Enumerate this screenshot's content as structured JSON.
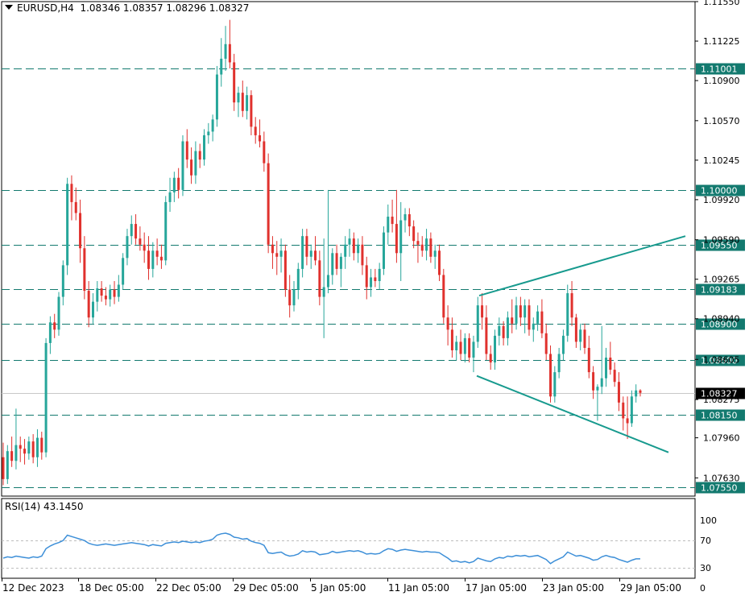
{
  "header": {
    "symbol": "EURUSD,H4",
    "ohlc": "1.08346 1.08357 1.08296 1.08327"
  },
  "rsi_panel": {
    "label": "RSI(14) 43.1450",
    "period": 14,
    "value": 43.145,
    "ticks": [
      100,
      70,
      30,
      0
    ],
    "levels": [
      70,
      30
    ]
  },
  "colors": {
    "bull": "#26a69a",
    "bear": "#e0312d",
    "level": "#137a6f",
    "channel": "#179a8e",
    "rsi": "#3d8fd8",
    "grid_dash": "#bdbdbd"
  },
  "chart_data": {
    "type": "candlestick",
    "symbol": "EURUSD",
    "timeframe": "H4",
    "ylim": [
      1.0748,
      1.1155
    ],
    "y_ticks": [
      "1.11550",
      "1.11225",
      "1.10900",
      "1.10570",
      "1.10245",
      "1.09920",
      "1.09590",
      "1.09265",
      "1.08940",
      "1.08605",
      "1.08275",
      "1.07960",
      "1.07630"
    ],
    "x_ticks": [
      "12 Dec 2023",
      "18 Dec 05:00",
      "22 Dec 05:00",
      "29 Dec 05:00",
      "5 Jan 05:00",
      "11 Jan 05:00",
      "17 Jan 05:00",
      "23 Jan 05:00",
      "29 Jan 05:00"
    ],
    "horizontal_levels": [
      "1.11001",
      "1.10000",
      "1.09550",
      "1.09183",
      "1.08900",
      "1.08600",
      "1.08150",
      "1.07550"
    ],
    "current_price": "1.08327",
    "channel": {
      "upper": [
        [
          1.0913,
          1.0962
        ]
      ],
      "lower": [
        [
          1.0847,
          1.0784
        ]
      ]
    },
    "candles": [
      {
        "o": 1.078,
        "h": 1.0792,
        "l": 1.0757,
        "c": 1.0762
      },
      {
        "o": 1.0762,
        "h": 1.079,
        "l": 1.0758,
        "c": 1.0785
      },
      {
        "o": 1.0785,
        "h": 1.0797,
        "l": 1.0772,
        "c": 1.0777
      },
      {
        "o": 1.0777,
        "h": 1.082,
        "l": 1.077,
        "c": 1.079
      },
      {
        "o": 1.079,
        "h": 1.0797,
        "l": 1.0776,
        "c": 1.0787
      },
      {
        "o": 1.0787,
        "h": 1.0795,
        "l": 1.0774,
        "c": 1.0783
      },
      {
        "o": 1.0783,
        "h": 1.0797,
        "l": 1.0778,
        "c": 1.0793
      },
      {
        "o": 1.0793,
        "h": 1.0799,
        "l": 1.0775,
        "c": 1.078
      },
      {
        "o": 1.078,
        "h": 1.0803,
        "l": 1.0772,
        "c": 1.0796
      },
      {
        "o": 1.0796,
        "h": 1.0801,
        "l": 1.0778,
        "c": 1.0784
      },
      {
        "o": 1.0784,
        "h": 1.0878,
        "l": 1.078,
        "c": 1.0874
      },
      {
        "o": 1.0874,
        "h": 1.0896,
        "l": 1.0865,
        "c": 1.0891
      },
      {
        "o": 1.0891,
        "h": 1.0898,
        "l": 1.0878,
        "c": 1.0885
      },
      {
        "o": 1.0885,
        "h": 1.0916,
        "l": 1.088,
        "c": 1.0912
      },
      {
        "o": 1.0912,
        "h": 1.0942,
        "l": 1.0905,
        "c": 1.0938
      },
      {
        "o": 1.0938,
        "h": 1.101,
        "l": 1.093,
        "c": 1.1005
      },
      {
        "o": 1.1005,
        "h": 1.1012,
        "l": 1.0975,
        "c": 1.099
      },
      {
        "o": 1.099,
        "h": 1.1002,
        "l": 1.0975,
        "c": 1.0981
      },
      {
        "o": 1.0981,
        "h": 1.0992,
        "l": 1.094,
        "c": 1.0952
      },
      {
        "o": 1.0952,
        "h": 1.0962,
        "l": 1.091,
        "c": 1.0917
      },
      {
        "o": 1.0917,
        "h": 1.0925,
        "l": 1.0887,
        "c": 1.0895
      },
      {
        "o": 1.0895,
        "h": 1.0915,
        "l": 1.089,
        "c": 1.0908
      },
      {
        "o": 1.0908,
        "h": 1.0925,
        "l": 1.09,
        "c": 1.0919
      },
      {
        "o": 1.0919,
        "h": 1.0925,
        "l": 1.0908,
        "c": 1.0913
      },
      {
        "o": 1.0913,
        "h": 1.092,
        "l": 1.0905,
        "c": 1.091
      },
      {
        "o": 1.091,
        "h": 1.0922,
        "l": 1.0904,
        "c": 1.0918
      },
      {
        "o": 1.0918,
        "h": 1.0925,
        "l": 1.0906,
        "c": 1.0912
      },
      {
        "o": 1.0912,
        "h": 1.093,
        "l": 1.0908,
        "c": 1.0922
      },
      {
        "o": 1.0922,
        "h": 1.0948,
        "l": 1.0918,
        "c": 1.0944
      },
      {
        "o": 1.0944,
        "h": 1.0968,
        "l": 1.0938,
        "c": 1.0962
      },
      {
        "o": 1.0962,
        "h": 1.0979,
        "l": 1.0955,
        "c": 1.0972
      },
      {
        "o": 1.0972,
        "h": 1.098,
        "l": 1.0955,
        "c": 1.096
      },
      {
        "o": 1.096,
        "h": 1.097,
        "l": 1.095,
        "c": 1.0955
      },
      {
        "o": 1.0955,
        "h": 1.0965,
        "l": 1.094,
        "c": 1.095
      },
      {
        "o": 1.095,
        "h": 1.0962,
        "l": 1.0926,
        "c": 1.0935
      },
      {
        "o": 1.0935,
        "h": 1.0957,
        "l": 1.0928,
        "c": 1.095
      },
      {
        "o": 1.095,
        "h": 1.096,
        "l": 1.0938,
        "c": 1.0945
      },
      {
        "o": 1.0945,
        "h": 1.0955,
        "l": 1.0935,
        "c": 1.0942
      },
      {
        "o": 1.0942,
        "h": 1.0995,
        "l": 1.0938,
        "c": 1.099
      },
      {
        "o": 1.099,
        "h": 1.101,
        "l": 1.0982,
        "c": 1.0998
      },
      {
        "o": 1.0998,
        "h": 1.1015,
        "l": 1.099,
        "c": 1.101
      },
      {
        "o": 1.101,
        "h": 1.1018,
        "l": 1.0993,
        "c": 1.1
      },
      {
        "o": 1.1,
        "h": 1.1045,
        "l": 1.0995,
        "c": 1.104
      },
      {
        "o": 1.104,
        "h": 1.105,
        "l": 1.1018,
        "c": 1.1025
      },
      {
        "o": 1.1025,
        "h": 1.1035,
        "l": 1.1005,
        "c": 1.1012
      },
      {
        "o": 1.1012,
        "h": 1.104,
        "l": 1.1005,
        "c": 1.1032
      },
      {
        "o": 1.1032,
        "h": 1.1038,
        "l": 1.1018,
        "c": 1.1025
      },
      {
        "o": 1.1025,
        "h": 1.105,
        "l": 1.102,
        "c": 1.1045
      },
      {
        "o": 1.1045,
        "h": 1.1055,
        "l": 1.1038,
        "c": 1.1048
      },
      {
        "o": 1.1048,
        "h": 1.1062,
        "l": 1.104,
        "c": 1.1058
      },
      {
        "o": 1.1058,
        "h": 1.1102,
        "l": 1.1052,
        "c": 1.1095
      },
      {
        "o": 1.1095,
        "h": 1.1125,
        "l": 1.1085,
        "c": 1.1108
      },
      {
        "o": 1.1108,
        "h": 1.1135,
        "l": 1.1098,
        "c": 1.112
      },
      {
        "o": 1.112,
        "h": 1.114,
        "l": 1.11,
        "c": 1.1105
      },
      {
        "o": 1.1105,
        "h": 1.1112,
        "l": 1.1065,
        "c": 1.1072
      },
      {
        "o": 1.1072,
        "h": 1.1085,
        "l": 1.106,
        "c": 1.108
      },
      {
        "o": 1.108,
        "h": 1.109,
        "l": 1.106,
        "c": 1.1065
      },
      {
        "o": 1.1065,
        "h": 1.1085,
        "l": 1.1058,
        "c": 1.1078
      },
      {
        "o": 1.1078,
        "h": 1.1082,
        "l": 1.1045,
        "c": 1.1052
      },
      {
        "o": 1.1052,
        "h": 1.106,
        "l": 1.1038,
        "c": 1.1045
      },
      {
        "o": 1.1045,
        "h": 1.1058,
        "l": 1.1035,
        "c": 1.104
      },
      {
        "o": 1.104,
        "h": 1.1048,
        "l": 1.1015,
        "c": 1.1022
      },
      {
        "o": 1.1022,
        "h": 1.103,
        "l": 1.0948,
        "c": 1.0955
      },
      {
        "o": 1.0955,
        "h": 1.0962,
        "l": 1.0935,
        "c": 1.0948
      },
      {
        "o": 1.0948,
        "h": 1.0958,
        "l": 1.093,
        "c": 1.0945
      },
      {
        "o": 1.0945,
        "h": 1.096,
        "l": 1.0932,
        "c": 1.095
      },
      {
        "o": 1.095,
        "h": 1.0955,
        "l": 1.0912,
        "c": 1.0918
      },
      {
        "o": 1.0918,
        "h": 1.093,
        "l": 1.0895,
        "c": 1.0905
      },
      {
        "o": 1.0905,
        "h": 1.0925,
        "l": 1.09,
        "c": 1.0918
      },
      {
        "o": 1.0918,
        "h": 1.094,
        "l": 1.091,
        "c": 1.0935
      },
      {
        "o": 1.0935,
        "h": 1.0968,
        "l": 1.0928,
        "c": 1.0962
      },
      {
        "o": 1.0962,
        "h": 1.0968,
        "l": 1.0938,
        "c": 1.0945
      },
      {
        "o": 1.0945,
        "h": 1.0955,
        "l": 1.0935,
        "c": 1.095
      },
      {
        "o": 1.095,
        "h": 1.0962,
        "l": 1.0938,
        "c": 1.0942
      },
      {
        "o": 1.0942,
        "h": 1.095,
        "l": 1.0905,
        "c": 1.0912
      },
      {
        "o": 1.0912,
        "h": 1.096,
        "l": 1.0878,
        "c": 1.092
      },
      {
        "o": 1.092,
        "h": 1.1,
        "l": 1.0915,
        "c": 1.093
      },
      {
        "o": 1.093,
        "h": 1.0952,
        "l": 1.0922,
        "c": 1.0948
      },
      {
        "o": 1.0948,
        "h": 1.0955,
        "l": 1.093,
        "c": 1.0935
      },
      {
        "o": 1.0935,
        "h": 1.0948,
        "l": 1.092,
        "c": 1.0945
      },
      {
        "o": 1.0945,
        "h": 1.0962,
        "l": 1.0935,
        "c": 1.0955
      },
      {
        "o": 1.0955,
        "h": 1.0968,
        "l": 1.0945,
        "c": 1.096
      },
      {
        "o": 1.096,
        "h": 1.0965,
        "l": 1.0942,
        "c": 1.0948
      },
      {
        "o": 1.0948,
        "h": 1.096,
        "l": 1.094,
        "c": 1.0955
      },
      {
        "o": 1.0955,
        "h": 1.0962,
        "l": 1.093,
        "c": 1.0938
      },
      {
        "o": 1.0938,
        "h": 1.0945,
        "l": 1.091,
        "c": 1.092
      },
      {
        "o": 1.092,
        "h": 1.0935,
        "l": 1.0912,
        "c": 1.0928
      },
      {
        "o": 1.0928,
        "h": 1.0935,
        "l": 1.092,
        "c": 1.0925
      },
      {
        "o": 1.0925,
        "h": 1.094,
        "l": 1.0918,
        "c": 1.0935
      },
      {
        "o": 1.0935,
        "h": 1.097,
        "l": 1.093,
        "c": 1.0965
      },
      {
        "o": 1.0965,
        "h": 1.0988,
        "l": 1.0955,
        "c": 1.0978
      },
      {
        "o": 1.0978,
        "h": 1.0992,
        "l": 1.0965,
        "c": 1.0972
      },
      {
        "o": 1.0972,
        "h": 1.1,
        "l": 1.094,
        "c": 1.0948
      },
      {
        "o": 1.0948,
        "h": 1.099,
        "l": 1.0925,
        "c": 1.0975
      },
      {
        "o": 1.0975,
        "h": 1.0985,
        "l": 1.0965,
        "c": 1.098
      },
      {
        "o": 1.098,
        "h": 1.0985,
        "l": 1.0962,
        "c": 1.097
      },
      {
        "o": 1.097,
        "h": 1.0975,
        "l": 1.0952,
        "c": 1.0958
      },
      {
        "o": 1.0958,
        "h": 1.0965,
        "l": 1.094,
        "c": 1.0955
      },
      {
        "o": 1.0955,
        "h": 1.0962,
        "l": 1.0945,
        "c": 1.095
      },
      {
        "o": 1.095,
        "h": 1.0968,
        "l": 1.0942,
        "c": 1.096
      },
      {
        "o": 1.096,
        "h": 1.0965,
        "l": 1.094,
        "c": 1.0945
      },
      {
        "o": 1.0945,
        "h": 1.0955,
        "l": 1.0935,
        "c": 1.095
      },
      {
        "o": 1.095,
        "h": 1.0955,
        "l": 1.0925,
        "c": 1.093
      },
      {
        "o": 1.093,
        "h": 1.0935,
        "l": 1.089,
        "c": 1.0895
      },
      {
        "o": 1.0895,
        "h": 1.0905,
        "l": 1.0872,
        "c": 1.0885
      },
      {
        "o": 1.0885,
        "h": 1.0895,
        "l": 1.0862,
        "c": 1.0868
      },
      {
        "o": 1.0868,
        "h": 1.088,
        "l": 1.086,
        "c": 1.0875
      },
      {
        "o": 1.0875,
        "h": 1.0885,
        "l": 1.086,
        "c": 1.0865
      },
      {
        "o": 1.0865,
        "h": 1.0882,
        "l": 1.0858,
        "c": 1.0878
      },
      {
        "o": 1.0878,
        "h": 1.0882,
        "l": 1.0858,
        "c": 1.0862
      },
      {
        "o": 1.0862,
        "h": 1.088,
        "l": 1.085,
        "c": 1.0875
      },
      {
        "o": 1.0875,
        "h": 1.0912,
        "l": 1.087,
        "c": 1.0905
      },
      {
        "o": 1.0905,
        "h": 1.0915,
        "l": 1.0885,
        "c": 1.0895
      },
      {
        "o": 1.0895,
        "h": 1.0905,
        "l": 1.086,
        "c": 1.0865
      },
      {
        "o": 1.0865,
        "h": 1.0872,
        "l": 1.0852,
        "c": 1.0858
      },
      {
        "o": 1.0858,
        "h": 1.0885,
        "l": 1.0852,
        "c": 1.088
      },
      {
        "o": 1.088,
        "h": 1.0895,
        "l": 1.0872,
        "c": 1.0888
      },
      {
        "o": 1.0888,
        "h": 1.0892,
        "l": 1.0872,
        "c": 1.0878
      },
      {
        "o": 1.0878,
        "h": 1.09,
        "l": 1.0872,
        "c": 1.0895
      },
      {
        "o": 1.0895,
        "h": 1.091,
        "l": 1.0882,
        "c": 1.089
      },
      {
        "o": 1.089,
        "h": 1.0912,
        "l": 1.0885,
        "c": 1.0905
      },
      {
        "o": 1.0905,
        "h": 1.0912,
        "l": 1.0888,
        "c": 1.0895
      },
      {
        "o": 1.0895,
        "h": 1.091,
        "l": 1.0882,
        "c": 1.0905
      },
      {
        "o": 1.0905,
        "h": 1.091,
        "l": 1.088,
        "c": 1.0885
      },
      {
        "o": 1.0885,
        "h": 1.0895,
        "l": 1.0875,
        "c": 1.089
      },
      {
        "o": 1.089,
        "h": 1.0905,
        "l": 1.0884,
        "c": 1.09
      },
      {
        "o": 1.09,
        "h": 1.091,
        "l": 1.0878,
        "c": 1.0882
      },
      {
        "o": 1.0882,
        "h": 1.089,
        "l": 1.086,
        "c": 1.0865
      },
      {
        "o": 1.0865,
        "h": 1.0872,
        "l": 1.0825,
        "c": 1.083
      },
      {
        "o": 1.083,
        "h": 1.0855,
        "l": 1.0825,
        "c": 1.085
      },
      {
        "o": 1.085,
        "h": 1.087,
        "l": 1.0845,
        "c": 1.0865
      },
      {
        "o": 1.0865,
        "h": 1.0885,
        "l": 1.086,
        "c": 1.088
      },
      {
        "o": 1.088,
        "h": 1.0922,
        "l": 1.0875,
        "c": 1.0915
      },
      {
        "o": 1.0915,
        "h": 1.0925,
        "l": 1.0888,
        "c": 1.0895
      },
      {
        "o": 1.0895,
        "h": 1.0898,
        "l": 1.087,
        "c": 1.0875
      },
      {
        "o": 1.0875,
        "h": 1.089,
        "l": 1.0868,
        "c": 1.0885
      },
      {
        "o": 1.0885,
        "h": 1.089,
        "l": 1.0865,
        "c": 1.087
      },
      {
        "o": 1.087,
        "h": 1.088,
        "l": 1.0845,
        "c": 1.085
      },
      {
        "o": 1.085,
        "h": 1.0855,
        "l": 1.0828,
        "c": 1.0835
      },
      {
        "o": 1.0835,
        "h": 1.084,
        "l": 1.081,
        "c": 1.0838
      },
      {
        "o": 1.0838,
        "h": 1.0888,
        "l": 1.0832,
        "c": 1.0845
      },
      {
        "o": 1.0845,
        "h": 1.087,
        "l": 1.0838,
        "c": 1.0862
      },
      {
        "o": 1.0862,
        "h": 1.0875,
        "l": 1.0848,
        "c": 1.0852
      },
      {
        "o": 1.0852,
        "h": 1.0858,
        "l": 1.0838,
        "c": 1.0842
      },
      {
        "o": 1.0842,
        "h": 1.085,
        "l": 1.0818,
        "c": 1.0825
      },
      {
        "o": 1.0825,
        "h": 1.083,
        "l": 1.0802,
        "c": 1.0812
      },
      {
        "o": 1.0812,
        "h": 1.083,
        "l": 1.0795,
        "c": 1.0808
      },
      {
        "o": 1.0808,
        "h": 1.0835,
        "l": 1.0805,
        "c": 1.083
      },
      {
        "o": 1.083,
        "h": 1.084,
        "l": 1.0825,
        "c": 1.0835
      },
      {
        "o": 1.0835,
        "h": 1.0836,
        "l": 1.083,
        "c": 1.0833
      }
    ],
    "rsi": [
      44,
      46,
      45,
      47,
      46,
      45,
      44,
      46,
      45,
      47,
      58,
      62,
      65,
      67,
      70,
      78,
      76,
      74,
      72,
      70,
      66,
      64,
      63,
      64,
      65,
      64,
      63,
      64,
      65,
      66,
      67,
      66,
      65,
      64,
      62,
      64,
      63,
      62,
      66,
      67,
      68,
      67,
      69,
      68,
      67,
      68,
      67,
      69,
      70,
      72,
      78,
      80,
      81,
      79,
      75,
      74,
      72,
      73,
      69,
      67,
      66,
      63,
      52,
      51,
      52,
      53,
      49,
      47,
      48,
      50,
      55,
      53,
      54,
      53,
      49,
      50,
      51,
      54,
      52,
      53,
      54,
      55,
      54,
      55,
      53,
      50,
      51,
      50,
      51,
      55,
      58,
      57,
      54,
      56,
      57,
      56,
      55,
      54,
      53,
      54,
      53,
      53,
      52,
      48,
      44,
      39,
      40,
      38,
      39,
      37,
      39,
      44,
      42,
      40,
      39,
      43,
      45,
      44,
      47,
      46,
      48,
      47,
      48,
      46,
      47,
      48,
      45,
      42,
      36,
      40,
      43,
      46,
      53,
      50,
      47,
      48,
      46,
      44,
      41,
      42,
      46,
      48,
      46,
      45,
      42,
      40,
      38,
      41,
      43,
      43
    ]
  }
}
